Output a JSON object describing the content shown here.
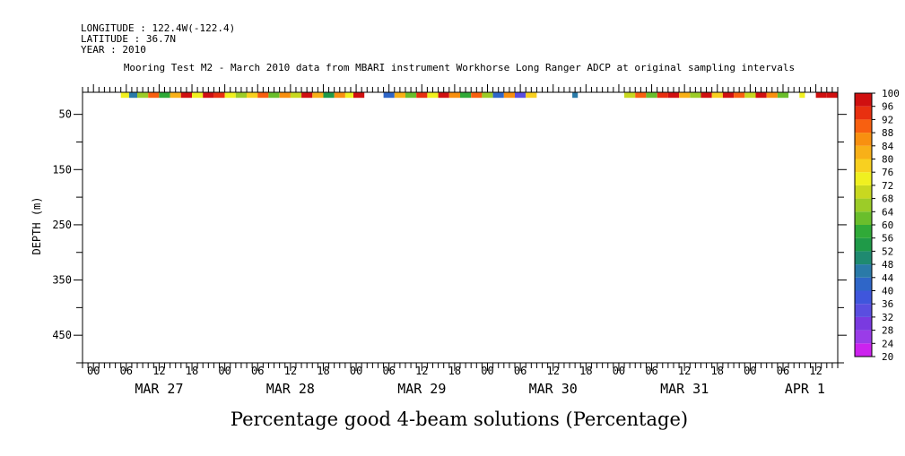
{
  "header": {
    "longitude_line": "LONGITUDE : 122.4W(-122.4)",
    "latitude_line": "LATITUDE : 36.7N",
    "year_line": "YEAR : 2010",
    "title": "Mooring Test M2 - March 2010 data from MBARI instrument Workhorse Long Ranger ADCP at original sampling intervals"
  },
  "footer_title": "Percentage good 4-beam solutions (Percentage)",
  "chart_data": {
    "type": "heatmap",
    "title": "Mooring Test M2 - March 2010 data from MBARI instrument Workhorse Long Ranger ADCP at original sampling intervals",
    "variable": "Percentage good 4-beam solutions (Percentage)",
    "ylabel": "DEPTH (m)",
    "y_reversed": true,
    "ylim": [
      10,
      500
    ],
    "y_ticks": [
      50,
      150,
      250,
      350,
      450
    ],
    "xlim_hours": [
      0,
      138
    ],
    "x_hour_ticks": [
      "00",
      "06",
      "12",
      "18",
      "00",
      "06",
      "12",
      "18",
      "00",
      "06",
      "12",
      "18",
      "00",
      "06",
      "12",
      "18",
      "00",
      "06",
      "12",
      "18",
      "00",
      "06",
      "12"
    ],
    "x_hour_tick_values": [
      2,
      8,
      14,
      20,
      26,
      32,
      38,
      44,
      50,
      56,
      62,
      68,
      74,
      80,
      86,
      92,
      98,
      104,
      110,
      116,
      122,
      128,
      134
    ],
    "day_labels": [
      "MAR 27",
      "MAR 28",
      "MAR 29",
      "MAR 30",
      "MAR 31",
      "APR  1"
    ],
    "day_label_values": [
      14,
      38,
      62,
      86,
      110,
      132
    ],
    "colorbar": {
      "levels": [
        20,
        24,
        28,
        32,
        36,
        40,
        44,
        48,
        52,
        56,
        60,
        64,
        68,
        72,
        76,
        80,
        84,
        88,
        92,
        96,
        100
      ],
      "colors": [
        "#cc22ee",
        "#9a3ce8",
        "#7a3ae0",
        "#5a4ee0",
        "#3f56dc",
        "#2f66c8",
        "#2a7aa8",
        "#1f8a70",
        "#1f9a48",
        "#30aa38",
        "#6abe2c",
        "#9ccc28",
        "#c8d820",
        "#f0f020",
        "#f8d020",
        "#f8b018",
        "#f89010",
        "#f86010",
        "#e83010",
        "#d01010"
      ]
    },
    "data_band": {
      "depth_top": 10,
      "depth_bottom": 20,
      "segments": [
        {
          "h0": 7.0,
          "h1": 8.5,
          "v": 74
        },
        {
          "h0": 8.5,
          "h1": 10.0,
          "v": 44
        },
        {
          "h0": 10.0,
          "h1": 12.0,
          "v": 66
        },
        {
          "h0": 12.0,
          "h1": 14.0,
          "v": 90
        },
        {
          "h0": 14.0,
          "h1": 16.0,
          "v": 56
        },
        {
          "h0": 16.0,
          "h1": 18.0,
          "v": 82
        },
        {
          "h0": 18.0,
          "h1": 20.0,
          "v": 96
        },
        {
          "h0": 20.0,
          "h1": 22.0,
          "v": 74
        },
        {
          "h0": 22.0,
          "h1": 24.0,
          "v": 100
        },
        {
          "h0": 24.0,
          "h1": 26.0,
          "v": 92
        },
        {
          "h0": 26.0,
          "h1": 28.0,
          "v": 72
        },
        {
          "h0": 28.0,
          "h1": 30.0,
          "v": 64
        },
        {
          "h0": 30.0,
          "h1": 32.0,
          "v": 78
        },
        {
          "h0": 32.0,
          "h1": 34.0,
          "v": 88
        },
        {
          "h0": 34.0,
          "h1": 36.0,
          "v": 60
        },
        {
          "h0": 36.0,
          "h1": 38.0,
          "v": 84
        },
        {
          "h0": 38.0,
          "h1": 40.0,
          "v": 70
        },
        {
          "h0": 40.0,
          "h1": 42.0,
          "v": 96
        },
        {
          "h0": 42.0,
          "h1": 44.0,
          "v": 80
        },
        {
          "h0": 44.0,
          "h1": 46.0,
          "v": 52
        },
        {
          "h0": 46.0,
          "h1": 48.0,
          "v": 86
        },
        {
          "h0": 48.0,
          "h1": 49.5,
          "v": 74
        },
        {
          "h0": 49.5,
          "h1": 51.5,
          "v": 96
        },
        {
          "h0": 55.0,
          "h1": 57.0,
          "v": 42
        },
        {
          "h0": 57.0,
          "h1": 59.0,
          "v": 80
        },
        {
          "h0": 59.0,
          "h1": 61.0,
          "v": 62
        },
        {
          "h0": 61.0,
          "h1": 63.0,
          "v": 92
        },
        {
          "h0": 63.0,
          "h1": 65.0,
          "v": 72
        },
        {
          "h0": 65.0,
          "h1": 67.0,
          "v": 96
        },
        {
          "h0": 67.0,
          "h1": 69.0,
          "v": 84
        },
        {
          "h0": 69.0,
          "h1": 71.0,
          "v": 56
        },
        {
          "h0": 71.0,
          "h1": 73.0,
          "v": 90
        },
        {
          "h0": 73.0,
          "h1": 75.0,
          "v": 66
        },
        {
          "h0": 75.0,
          "h1": 77.0,
          "v": 40
        },
        {
          "h0": 77.0,
          "h1": 79.0,
          "v": 84
        },
        {
          "h0": 79.0,
          "h1": 81.0,
          "v": 34
        },
        {
          "h0": 81.0,
          "h1": 83.0,
          "v": 76
        },
        {
          "h0": 89.5,
          "h1": 90.5,
          "v": 44
        },
        {
          "h0": 99.0,
          "h1": 101.0,
          "v": 70
        },
        {
          "h0": 101.0,
          "h1": 103.0,
          "v": 88
        },
        {
          "h0": 103.0,
          "h1": 105.0,
          "v": 60
        },
        {
          "h0": 105.0,
          "h1": 107.0,
          "v": 92
        },
        {
          "h0": 107.0,
          "h1": 109.0,
          "v": 100
        },
        {
          "h0": 109.0,
          "h1": 111.0,
          "v": 80
        },
        {
          "h0": 111.0,
          "h1": 113.0,
          "v": 64
        },
        {
          "h0": 113.0,
          "h1": 115.0,
          "v": 96
        },
        {
          "h0": 115.0,
          "h1": 117.0,
          "v": 76
        },
        {
          "h0": 117.0,
          "h1": 119.0,
          "v": 100
        },
        {
          "h0": 119.0,
          "h1": 121.0,
          "v": 88
        },
        {
          "h0": 121.0,
          "h1": 123.0,
          "v": 70
        },
        {
          "h0": 123.0,
          "h1": 125.0,
          "v": 96
        },
        {
          "h0": 125.0,
          "h1": 127.0,
          "v": 84
        },
        {
          "h0": 127.0,
          "h1": 129.0,
          "v": 60
        },
        {
          "h0": 131.0,
          "h1": 132.0,
          "v": 74
        },
        {
          "h0": 134.0,
          "h1": 136.0,
          "v": 96
        },
        {
          "h0": 136.0,
          "h1": 138.0,
          "v": 100
        }
      ]
    }
  }
}
